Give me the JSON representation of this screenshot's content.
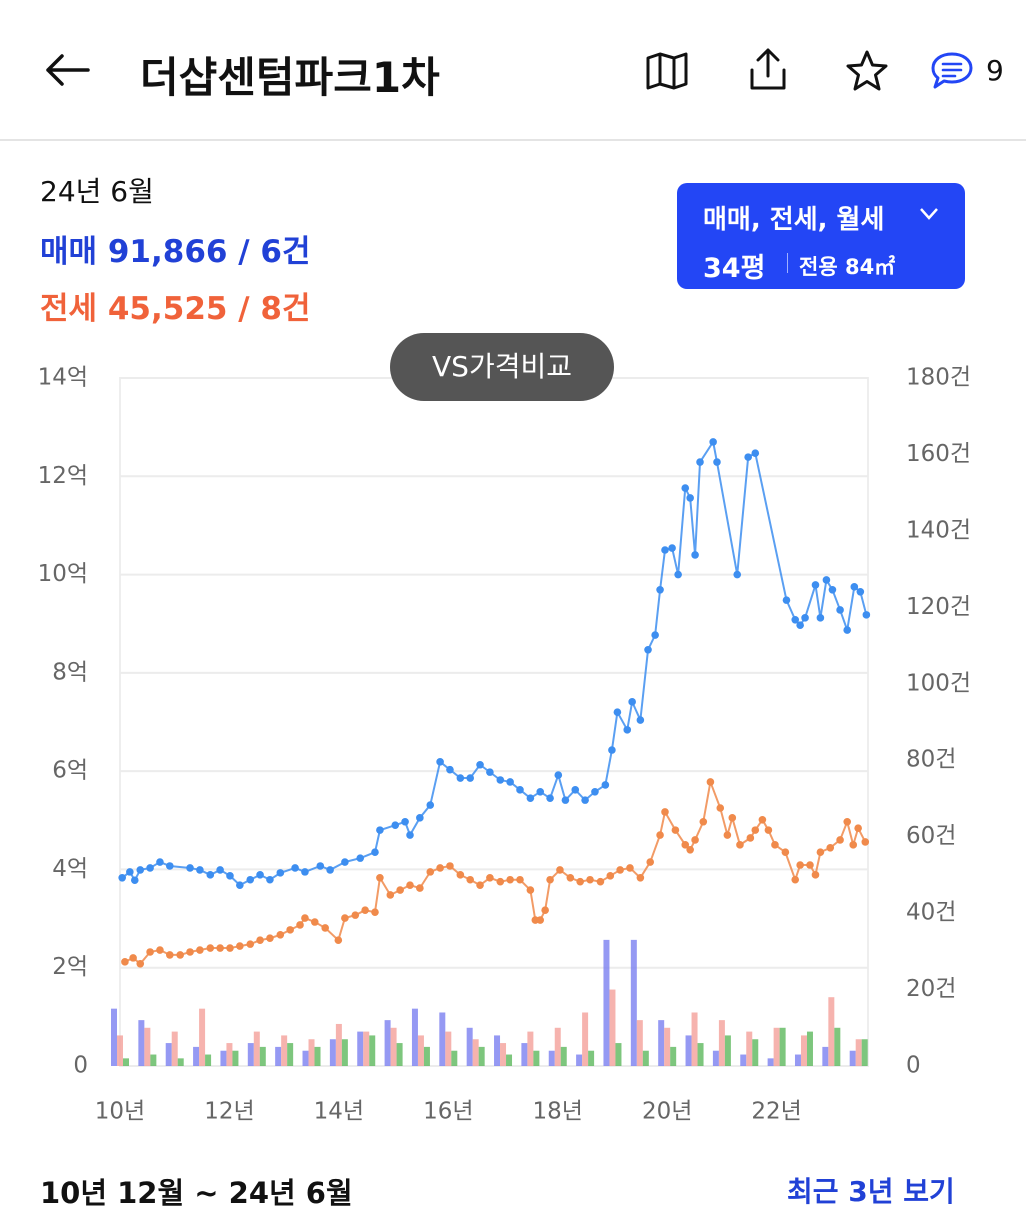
{
  "header": {
    "title": "더샵센텀파크1차",
    "comment_count": 9
  },
  "summary": {
    "date": "24년 6월",
    "sale_label": "매매",
    "sale_value": "91,866 / 6건",
    "jeonse_label": "전세",
    "jeonse_value": "45,525 / 8건"
  },
  "filter": {
    "types": "매매, 전세, 월세",
    "size": "34평",
    "area": "전용 84㎡"
  },
  "compare_button": "VS가격비교",
  "chart_data": {
    "type": "combo",
    "xlim": [
      10,
      23.67
    ],
    "xticks": [
      {
        "value": 10,
        "label": "10년"
      },
      {
        "value": 12,
        "label": "12년"
      },
      {
        "value": 14,
        "label": "14년"
      },
      {
        "value": 16,
        "label": "16년"
      },
      {
        "value": 18,
        "label": "18년"
      },
      {
        "value": 20,
        "label": "20년"
      },
      {
        "value": 22,
        "label": "22년"
      }
    ],
    "ylim": [
      0,
      14
    ],
    "yticks": [
      0,
      {
        "value": 2,
        "label": "2억"
      },
      {
        "value": 4,
        "label": "4억"
      },
      {
        "value": 6,
        "label": "6억"
      },
      {
        "value": 8,
        "label": "8억"
      },
      {
        "value": 10,
        "label": "10억"
      },
      {
        "value": 12,
        "label": "12억"
      },
      {
        "value": 14,
        "label": "14억"
      }
    ],
    "y2lim": [
      0,
      180
    ],
    "y2ticks": [
      0,
      {
        "value": 20,
        "label": "20건"
      },
      {
        "value": 40,
        "label": "40건"
      },
      {
        "value": 60,
        "label": "60건"
      },
      {
        "value": 80,
        "label": "80건"
      },
      {
        "value": 100,
        "label": "100건"
      },
      {
        "value": 120,
        "label": "120건"
      },
      {
        "value": 140,
        "label": "140건"
      },
      {
        "value": 160,
        "label": "160건"
      },
      {
        "value": 180,
        "label": "180건"
      }
    ],
    "grid": true,
    "series": [
      {
        "type": "bar",
        "axis": "y2",
        "color": "#7b7ff0",
        "x": [
          10,
          10.5,
          11,
          11.5,
          12,
          12.5,
          13,
          13.5,
          14,
          14.5,
          15,
          15.5,
          16,
          16.5,
          17,
          17.5,
          18,
          18.5,
          19,
          19.5,
          20,
          20.5,
          21,
          21.5,
          22,
          22.5,
          23,
          23.5
        ],
        "values": [
          15,
          12,
          6,
          5,
          4,
          6,
          5,
          4,
          7,
          9,
          12,
          15,
          14,
          10,
          8,
          6,
          4,
          3,
          33,
          33,
          12,
          8,
          4,
          3,
          2,
          3,
          5,
          4
        ]
      },
      {
        "type": "bar",
        "axis": "y2",
        "color": "#f4a09a",
        "x": [
          10,
          10.5,
          11,
          11.5,
          12,
          12.5,
          13,
          13.5,
          14,
          14.5,
          15,
          15.5,
          16,
          16.5,
          17,
          17.5,
          18,
          18.5,
          19,
          19.5,
          20,
          20.5,
          21,
          21.5,
          22,
          22.5,
          23,
          23.5
        ],
        "values": [
          8,
          10,
          9,
          15,
          6,
          9,
          8,
          7,
          11,
          9,
          10,
          8,
          9,
          7,
          6,
          9,
          10,
          14,
          20,
          12,
          10,
          14,
          12,
          9,
          10,
          8,
          18,
          7
        ]
      },
      {
        "type": "bar",
        "axis": "y2",
        "color": "#5cb85c",
        "x": [
          10,
          10.5,
          11,
          11.5,
          12,
          12.5,
          13,
          13.5,
          14,
          14.5,
          15,
          15.5,
          16,
          16.5,
          17,
          17.5,
          18,
          18.5,
          19,
          19.5,
          20,
          20.5,
          21,
          21.5,
          22,
          22.5,
          23,
          23.5
        ],
        "values": [
          2,
          3,
          2,
          3,
          4,
          5,
          6,
          5,
          7,
          8,
          6,
          5,
          4,
          5,
          3,
          4,
          5,
          4,
          6,
          4,
          5,
          6,
          8,
          7,
          10,
          9,
          10,
          7
        ]
      },
      {
        "type": "line",
        "color": "#3d8ef0",
        "x": [
          10.04,
          10.18,
          10.27,
          10.37,
          10.55,
          10.73,
          10.91,
          11.28,
          11.46,
          11.65,
          11.83,
          12.01,
          12.19,
          12.38,
          12.56,
          12.74,
          12.93,
          13.2,
          13.38,
          13.66,
          13.84,
          14.11,
          14.39,
          14.66,
          14.75,
          15.03,
          15.21,
          15.3,
          15.48,
          15.67,
          15.85,
          16.03,
          16.22,
          16.4,
          16.58,
          16.76,
          16.95,
          17.13,
          17.31,
          17.5,
          17.68,
          17.86,
          18.01,
          18.14,
          18.32,
          18.5,
          18.68,
          18.87,
          18.99,
          19.09,
          19.27,
          19.36,
          19.51,
          19.65,
          19.78,
          19.87,
          19.96,
          20.09,
          20.2,
          20.33,
          20.42,
          20.51,
          20.6,
          20.84,
          20.91,
          21.28,
          21.48,
          21.61,
          22.18,
          22.34,
          22.43,
          22.52,
          22.71,
          22.8,
          22.91,
          23.02,
          23.16,
          23.29,
          23.42,
          23.53,
          23.64
        ],
        "values": [
          3.83,
          3.95,
          3.78,
          3.99,
          4.03,
          4.15,
          4.07,
          4.03,
          3.99,
          3.89,
          3.99,
          3.87,
          3.68,
          3.79,
          3.89,
          3.79,
          3.93,
          4.03,
          3.95,
          4.07,
          3.99,
          4.15,
          4.23,
          4.35,
          4.8,
          4.9,
          4.97,
          4.7,
          5.05,
          5.31,
          6.19,
          6.03,
          5.86,
          5.86,
          6.13,
          5.98,
          5.82,
          5.78,
          5.62,
          5.45,
          5.58,
          5.45,
          5.92,
          5.41,
          5.62,
          5.41,
          5.58,
          5.72,
          6.43,
          7.2,
          6.84,
          7.41,
          7.04,
          8.47,
          8.77,
          9.69,
          10.5,
          10.54,
          10.0,
          11.76,
          11.56,
          10.4,
          12.29,
          12.7,
          12.29,
          10.0,
          12.39,
          12.47,
          9.48,
          9.08,
          8.97,
          9.12,
          9.79,
          9.12,
          9.89,
          9.69,
          9.28,
          8.87,
          9.75,
          9.65,
          9.18
        ]
      },
      {
        "type": "line",
        "color": "#f08a4b",
        "x": [
          10.09,
          10.24,
          10.37,
          10.55,
          10.73,
          10.91,
          11.1,
          11.28,
          11.46,
          11.65,
          11.83,
          12.01,
          12.19,
          12.38,
          12.56,
          12.74,
          12.93,
          13.11,
          13.29,
          13.38,
          13.56,
          13.75,
          13.99,
          14.11,
          14.3,
          14.48,
          14.66,
          14.75,
          14.94,
          15.12,
          15.3,
          15.48,
          15.67,
          15.85,
          16.03,
          16.22,
          16.4,
          16.58,
          16.76,
          16.95,
          17.13,
          17.31,
          17.5,
          17.59,
          17.68,
          17.77,
          17.86,
          18.04,
          18.23,
          18.41,
          18.59,
          18.78,
          18.96,
          19.14,
          19.32,
          19.51,
          19.69,
          19.87,
          19.96,
          20.15,
          20.33,
          20.42,
          20.51,
          20.66,
          20.79,
          20.97,
          21.1,
          21.19,
          21.33,
          21.52,
          21.61,
          21.74,
          21.85,
          21.97,
          22.16,
          22.34,
          22.43,
          22.61,
          22.71,
          22.8,
          22.98,
          23.16,
          23.29,
          23.4,
          23.49,
          23.62
        ],
        "values": [
          2.12,
          2.2,
          2.08,
          2.32,
          2.36,
          2.26,
          2.26,
          2.32,
          2.36,
          2.4,
          2.4,
          2.4,
          2.44,
          2.48,
          2.56,
          2.6,
          2.67,
          2.77,
          2.87,
          3.01,
          2.93,
          2.81,
          2.56,
          3.01,
          3.07,
          3.17,
          3.13,
          3.83,
          3.48,
          3.58,
          3.68,
          3.62,
          3.95,
          4.03,
          4.07,
          3.89,
          3.79,
          3.68,
          3.83,
          3.75,
          3.79,
          3.79,
          3.58,
          2.97,
          2.97,
          3.17,
          3.79,
          3.99,
          3.83,
          3.75,
          3.79,
          3.75,
          3.87,
          3.99,
          4.03,
          3.83,
          4.15,
          4.7,
          5.17,
          4.8,
          4.5,
          4.4,
          4.6,
          4.97,
          5.78,
          5.25,
          4.7,
          5.05,
          4.5,
          4.64,
          4.8,
          5.01,
          4.8,
          4.5,
          4.35,
          3.79,
          4.09,
          4.09,
          3.89,
          4.35,
          4.44,
          4.6,
          4.97,
          4.5,
          4.84,
          4.56
        ]
      }
    ]
  },
  "footer": {
    "range": "10년 12월 ~ 24년 6월",
    "link": "최근 3년 보기"
  }
}
